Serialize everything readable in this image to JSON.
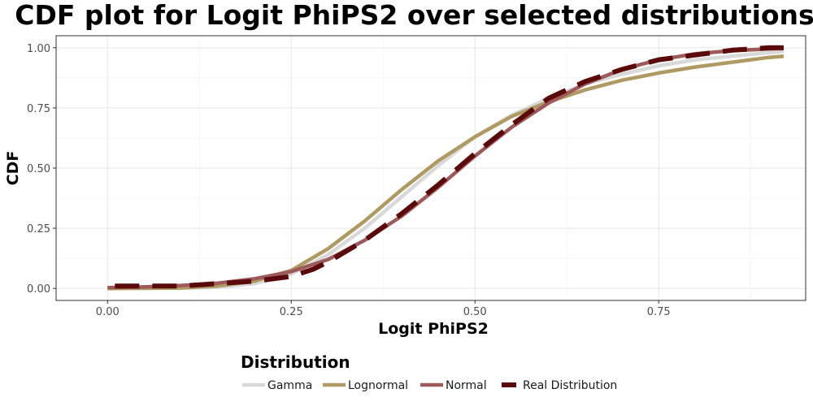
{
  "chart_data": {
    "type": "line",
    "title": "CDF plot for Logit PhiPS2 over selected distributions",
    "xlabel": "Logit PhiPS2",
    "ylabel": "CDF",
    "xlim": [
      -0.07,
      0.95
    ],
    "ylim": [
      -0.05,
      1.05
    ],
    "x_ticks": [
      0.0,
      0.25,
      0.5,
      0.75
    ],
    "x_tick_labels": [
      "0.00",
      "0.25",
      "0.50",
      "0.75"
    ],
    "y_ticks": [
      0.0,
      0.25,
      0.5,
      0.75,
      1.0
    ],
    "y_tick_labels": [
      "0.00",
      "0.25",
      "0.50",
      "0.75",
      "1.00"
    ],
    "grid": true,
    "legend": {
      "title": "Distribution",
      "placement": "bottom"
    },
    "series": [
      {
        "name": "Gamma",
        "color": "#d9d9d9",
        "style": "solid",
        "x": [
          0.0,
          0.1,
          0.15,
          0.2,
          0.25,
          0.3,
          0.35,
          0.4,
          0.45,
          0.5,
          0.55,
          0.6,
          0.65,
          0.7,
          0.75,
          0.8,
          0.85,
          0.9,
          0.92
        ],
        "y": [
          0.0,
          0.001,
          0.005,
          0.02,
          0.06,
          0.14,
          0.25,
          0.38,
          0.51,
          0.63,
          0.72,
          0.79,
          0.85,
          0.89,
          0.925,
          0.95,
          0.965,
          0.98,
          0.985
        ]
      },
      {
        "name": "Lognormal",
        "color": "#ae9a62",
        "style": "solid",
        "x": [
          0.0,
          0.1,
          0.15,
          0.2,
          0.25,
          0.3,
          0.35,
          0.4,
          0.45,
          0.5,
          0.55,
          0.6,
          0.65,
          0.7,
          0.75,
          0.8,
          0.85,
          0.9,
          0.92
        ],
        "y": [
          0.0,
          0.002,
          0.01,
          0.03,
          0.075,
          0.165,
          0.28,
          0.41,
          0.53,
          0.63,
          0.715,
          0.775,
          0.825,
          0.865,
          0.895,
          0.92,
          0.94,
          0.96,
          0.965
        ]
      },
      {
        "name": "Normal",
        "color": "#9e5a5a",
        "style": "solid",
        "x": [
          0.0,
          0.05,
          0.1,
          0.15,
          0.2,
          0.25,
          0.3,
          0.35,
          0.4,
          0.45,
          0.5,
          0.55,
          0.6,
          0.65,
          0.7,
          0.75,
          0.8,
          0.85,
          0.9,
          0.92
        ],
        "y": [
          0.003,
          0.006,
          0.012,
          0.022,
          0.04,
          0.07,
          0.12,
          0.2,
          0.3,
          0.42,
          0.55,
          0.67,
          0.77,
          0.85,
          0.91,
          0.95,
          0.975,
          0.988,
          0.995,
          0.997
        ]
      },
      {
        "name": "Real Distribution",
        "color": "#5a0a0a",
        "style": "dashed",
        "x": [
          0.01,
          0.1,
          0.2,
          0.25,
          0.28,
          0.3,
          0.35,
          0.4,
          0.45,
          0.5,
          0.55,
          0.6,
          0.65,
          0.7,
          0.75,
          0.8,
          0.85,
          0.9,
          0.92
        ],
        "y": [
          0.01,
          0.01,
          0.03,
          0.05,
          0.08,
          0.11,
          0.2,
          0.31,
          0.43,
          0.56,
          0.68,
          0.79,
          0.86,
          0.91,
          0.95,
          0.97,
          0.99,
          1.0,
          1.0
        ]
      }
    ]
  }
}
